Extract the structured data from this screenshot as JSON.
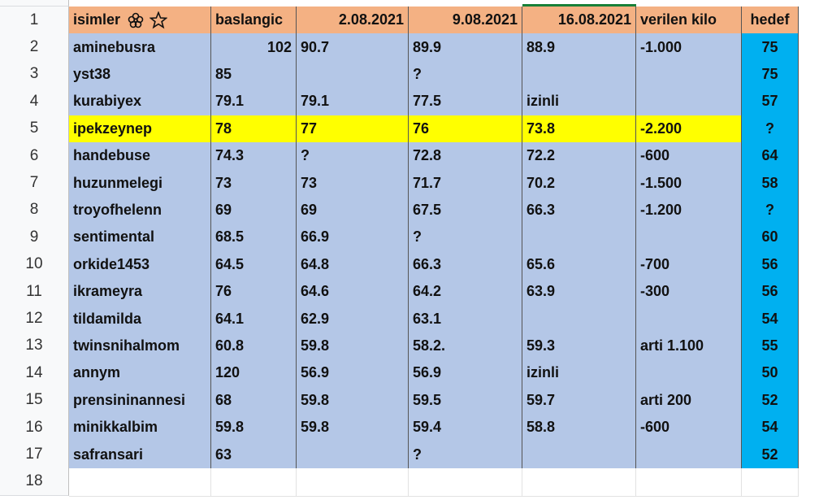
{
  "table": {
    "row_numbers": [
      "1",
      "2",
      "3",
      "4",
      "5",
      "6",
      "7",
      "8",
      "9",
      "10",
      "11",
      "12",
      "13",
      "14",
      "15",
      "16",
      "17",
      "18"
    ],
    "header": [
      "isimler",
      "baslangic",
      "2.08.2021",
      "9.08.2021",
      "16.08.2021",
      "verilen kilo",
      "hedef"
    ],
    "rows": [
      [
        "aminebusra",
        "102",
        "90.7",
        "89.9",
        "88.9",
        "-1.000",
        "75"
      ],
      [
        "yst38",
        "85",
        null,
        "?",
        null,
        null,
        "75"
      ],
      [
        "kurabiyex",
        "79.1",
        "79.1",
        "77.5",
        "izinli",
        null,
        "57"
      ],
      [
        "ipekzeynep",
        "78",
        "77",
        "76",
        "73.8",
        "-2.200",
        "?"
      ],
      [
        "handebuse",
        "74.3",
        "?",
        "72.8",
        "72.2",
        "-600",
        "64"
      ],
      [
        "huzunmelegi",
        "73",
        "73",
        "71.7",
        "70.2",
        "-1.500",
        "58"
      ],
      [
        "troyofhelenn",
        "69",
        "69",
        "67.5",
        "66.3",
        "-1.200",
        "?"
      ],
      [
        "sentimental",
        "68.5",
        "66.9",
        "?",
        null,
        null,
        "60"
      ],
      [
        "orkide1453",
        "64.5",
        "64.8",
        "66.3",
        "65.6",
        "-700",
        "56"
      ],
      [
        "ikrameyra",
        "76",
        "64.6",
        "64.2",
        "63.9",
        "-300",
        "56"
      ],
      [
        "tildamilda",
        "64.1",
        "62.9",
        "63.1",
        null,
        null,
        "54"
      ],
      [
        "twinsnihalmom",
        "60.8",
        "59.8",
        "58.2.",
        "59.3",
        "arti 1.100",
        "55"
      ],
      [
        "annym",
        "120",
        "56.9",
        "56.9",
        "izinli",
        null,
        "50"
      ],
      [
        "prensininannesi",
        "68",
        "59.8",
        "59.5",
        "59.7",
        "arti 200",
        "52"
      ],
      [
        "minikkalbim",
        "59.8",
        "59.8",
        "59.4",
        "58.8",
        "-600",
        "54"
      ],
      [
        "safransari",
        "63",
        null,
        "?",
        null,
        null,
        "52"
      ]
    ]
  }
}
